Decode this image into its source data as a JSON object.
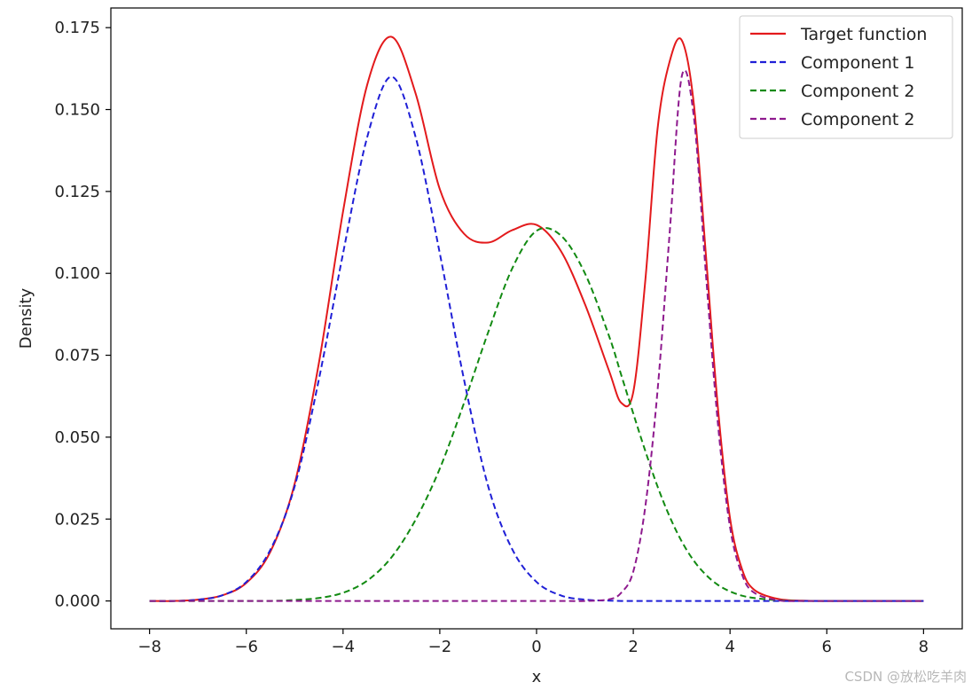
{
  "chart_data": {
    "type": "line",
    "title": "",
    "xlabel": "x",
    "ylabel": "Density",
    "xlim": [
      -8.8,
      8.8
    ],
    "ylim": [
      -0.0085,
      0.181
    ],
    "x_ticks": [
      -8,
      -6,
      -4,
      -2,
      0,
      2,
      4,
      6,
      8
    ],
    "x_tick_labels": [
      "−8",
      "−6",
      "−4",
      "−2",
      "0",
      "2",
      "4",
      "6",
      "8"
    ],
    "y_ticks": [
      0.0,
      0.025,
      0.05,
      0.075,
      0.1,
      0.125,
      0.15,
      0.175
    ],
    "y_tick_labels": [
      "0.000",
      "0.025",
      "0.050",
      "0.075",
      "0.100",
      "0.125",
      "0.150",
      "0.175"
    ],
    "grid": false,
    "legend_position": "top-right",
    "x": [
      -8,
      -7.5,
      -7,
      -6.5,
      -6,
      -5.5,
      -5,
      -4.5,
      -4,
      -3.5,
      -3,
      -2.5,
      -2,
      -1.5,
      -1,
      -0.5,
      0,
      0.5,
      1,
      1.5,
      1.75,
      2,
      2.25,
      2.5,
      2.75,
      3,
      3.25,
      3.5,
      3.75,
      4,
      4.25,
      4.5,
      5,
      5.5,
      6,
      6.5,
      7,
      7.5,
      8
    ],
    "series": [
      {
        "name": "Target function",
        "color": "#e31a1c",
        "dash": "solid",
        "values": [
          0.0,
          0.0,
          0.0004,
          0.0017,
          0.0055,
          0.0151,
          0.0358,
          0.0726,
          0.1189,
          0.1576,
          0.1722,
          0.1549,
          0.1257,
          0.1121,
          0.1094,
          0.1132,
          0.1148,
          0.1069,
          0.0906,
          0.0702,
          0.0605,
          0.0638,
          0.0981,
          0.1439,
          0.1646,
          0.1712,
          0.1519,
          0.1058,
          0.0588,
          0.0252,
          0.0096,
          0.0034,
          0.0006,
          0.0001,
          0.0,
          0.0,
          0.0,
          0.0,
          0.0
        ]
      },
      {
        "name": "Component 1",
        "color": "#1f1fd6",
        "dash": "dashed",
        "values": [
          0.0,
          0.0,
          0.0004,
          0.0017,
          0.0058,
          0.0157,
          0.035,
          0.0676,
          0.1061,
          0.1416,
          0.16,
          0.1416,
          0.1061,
          0.0676,
          0.035,
          0.0157,
          0.0058,
          0.0017,
          0.0004,
          0.0001,
          0.0,
          0.0,
          0.0,
          0.0,
          0.0,
          0.0,
          0.0,
          0.0,
          0.0,
          0.0,
          0.0,
          0.0,
          0.0,
          0.0,
          0.0,
          0.0,
          0.0,
          0.0,
          0.0
        ]
      },
      {
        "name": "Component 2",
        "color": "#128a12",
        "dash": "dashed",
        "values": [
          0.0,
          0.0,
          0.0,
          0.0,
          0.0,
          0.0,
          0.0003,
          0.0009,
          0.0025,
          0.0062,
          0.0133,
          0.0248,
          0.0404,
          0.0604,
          0.082,
          0.1016,
          0.113,
          0.1116,
          0.1,
          0.0808,
          0.069,
          0.0572,
          0.0457,
          0.035,
          0.0258,
          0.0182,
          0.0123,
          0.008,
          0.0049,
          0.0029,
          0.0016,
          0.0009,
          0.0002,
          0.0,
          0.0,
          0.0,
          0.0,
          0.0,
          0.0
        ]
      },
      {
        "name": "Component 2",
        "color": "#8e1a8e",
        "dash": "dashed",
        "values": [
          0.0,
          0.0,
          0.0,
          0.0,
          0.0,
          0.0,
          0.0,
          0.0,
          0.0,
          0.0,
          0.0,
          0.0,
          0.0,
          0.0,
          0.0,
          0.0,
          0.0,
          0.0,
          0.0,
          0.0005,
          0.0025,
          0.009,
          0.029,
          0.064,
          0.112,
          0.16,
          0.148,
          0.1,
          0.054,
          0.0225,
          0.008,
          0.0025,
          0.0002,
          0.0,
          0.0,
          0.0,
          0.0,
          0.0,
          0.0
        ]
      }
    ]
  },
  "watermark": "CSDN @放松吃羊肉"
}
